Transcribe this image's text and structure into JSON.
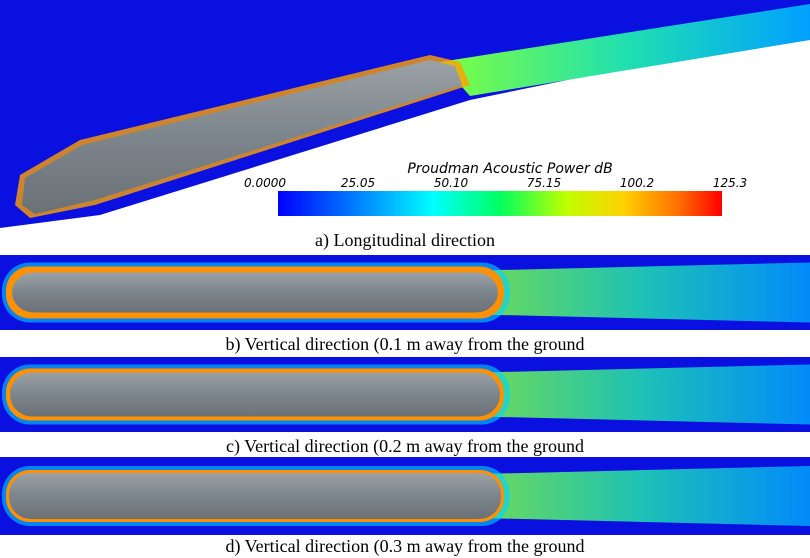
{
  "panels": [
    {
      "caption": "a) Longitudinal direction"
    },
    {
      "caption": "b) Vertical direction (0.1 m away from the ground"
    },
    {
      "caption": "c) Vertical direction (0.2 m away from the ground"
    },
    {
      "caption": "d) Vertical direction (0.3 m away from the ground"
    }
  ],
  "colorbar": {
    "title": "Proudman Acoustic Power dB",
    "ticks": [
      "0.0000",
      "25.05",
      "50.10",
      "75.15",
      "100.2",
      "125.3"
    ]
  }
}
